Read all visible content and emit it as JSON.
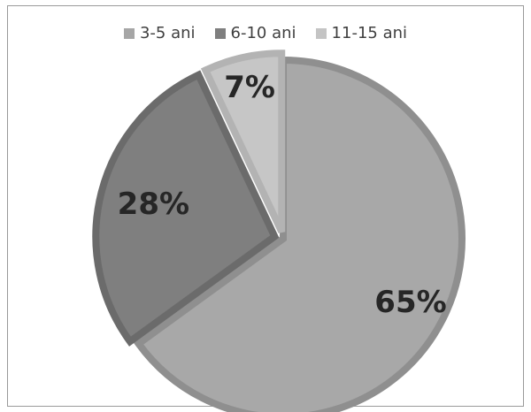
{
  "chart_data": {
    "type": "pie",
    "title": "",
    "legend_position": "top",
    "categories": [
      "3-5 ani",
      "6-10 ani",
      "11-15 ani"
    ],
    "values": [
      65,
      28,
      7
    ],
    "data_labels": [
      "65%",
      "28%",
      "7%"
    ],
    "colors": {
      "3-5 ani": {
        "fill": "#a8a8a8",
        "border": "#8f8f8f"
      },
      "6-10 ani": {
        "fill": "#7f7f7f",
        "border": "#6b6b6b"
      },
      "11-15 ani": {
        "fill": "#c6c6c6",
        "border": "#b3b3b3"
      }
    }
  },
  "legend": [
    {
      "label": "3-5 ani",
      "color": "#a6a6a6"
    },
    {
      "label": "6-10 ani",
      "color": "#7f7f7f"
    },
    {
      "label": "11-15 ani",
      "color": "#c4c4c4"
    }
  ]
}
